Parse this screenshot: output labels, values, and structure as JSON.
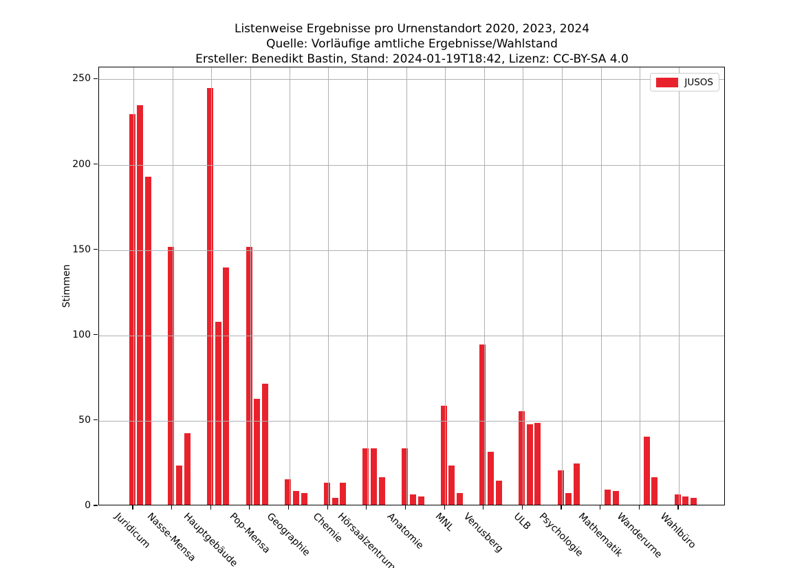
{
  "title": {
    "line1": "Listenweise Ergebnisse pro Urnenstandort 2020, 2023, 2024",
    "line2": "Quelle: Vorläufige amtliche Ergebnisse/Wahlstand",
    "line3": "Ersteller: Benedikt Bastin, Stand: 2024-01-19T18:42, Lizenz: CC-BY-SA 4.0"
  },
  "legend": {
    "label": "JUSOS",
    "color": "#e8222c"
  },
  "colors": {
    "bar": "#e8222c",
    "grid": "#b0b0b0",
    "axis": "#000000",
    "legend_border": "#cccccc",
    "background": "#ffffff"
  },
  "chart_data": {
    "type": "bar",
    "title": "Listenweise Ergebnisse pro Urnenstandort 2020, 2023, 2024",
    "subtitle": "Quelle: Vorläufige amtliche Ergebnisse/Wahlstand",
    "credit": "Ersteller: Benedikt Bastin, Stand: 2024-01-19T18:42, Lizenz: CC-BY-SA 4.0",
    "xlabel": "",
    "ylabel": "Stimmen",
    "ylim": [
      0,
      257
    ],
    "yticks": [
      0,
      50,
      100,
      150,
      200,
      250
    ],
    "grid": true,
    "grid_over_bars": true,
    "x_tick_rotation": -45,
    "legend_position": "upper right",
    "legend_label": "JUSOS",
    "bar_color": "#e8222c",
    "categories": [
      "Juridicum",
      "Nasse-Mensa",
      "Hauptgebäude",
      "Pop-Mensa",
      "Geographie",
      "Chemie",
      "Hörsaalzentrum",
      "Anatomie",
      "MNL",
      "Venusberg",
      "ULB",
      "Psychologie",
      "Mathematik",
      "Wanderurne",
      "Wahlbüro"
    ],
    "series": [
      {
        "name": "2020",
        "values": [
          229,
          151,
          244,
          151,
          15,
          13,
          33,
          33,
          58,
          94,
          55,
          20,
          null,
          null,
          6
        ]
      },
      {
        "name": "2023",
        "values": [
          234,
          23,
          107,
          62,
          8,
          4,
          33,
          6,
          23,
          31,
          47,
          7,
          9,
          40,
          5
        ]
      },
      {
        "name": "2024",
        "values": [
          192,
          42,
          139,
          71,
          7,
          13,
          16,
          5,
          7,
          14,
          48,
          24,
          8,
          16,
          4
        ]
      }
    ]
  }
}
